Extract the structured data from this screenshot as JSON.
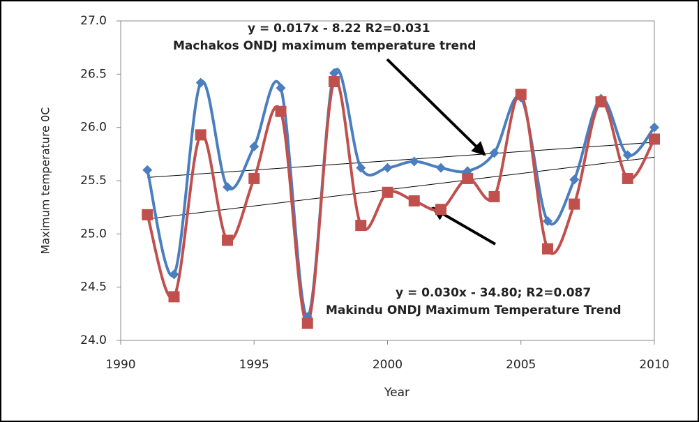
{
  "chart_data": {
    "type": "line",
    "y_label": "Maximum temperature 0C",
    "x_label": "Year",
    "x": [
      1991,
      1992,
      1993,
      1994,
      1995,
      1996,
      1997,
      1998,
      1999,
      2000,
      2001,
      2002,
      2003,
      2004,
      2005,
      2006,
      2007,
      2008,
      2009,
      2010
    ],
    "series": [
      {
        "color": "#4a7ebf",
        "marker": "diamond",
        "values": [
          25.6,
          24.62,
          26.42,
          25.44,
          25.82,
          26.37,
          24.22,
          26.51,
          25.62,
          25.62,
          25.68,
          25.62,
          25.59,
          25.76,
          26.28,
          25.12,
          25.51,
          26.27,
          25.74,
          26.0
        ]
      },
      {
        "color": "#c0504d",
        "marker": "square",
        "values": [
          25.18,
          24.41,
          25.93,
          24.94,
          25.52,
          26.15,
          24.16,
          26.43,
          25.08,
          25.39,
          25.31,
          25.23,
          25.52,
          25.35,
          26.31,
          24.86,
          25.28,
          26.24,
          25.52,
          25.89
        ]
      }
    ],
    "trendlines": [
      {
        "x": [
          1991,
          2010
        ],
        "values": [
          25.53,
          25.86
        ]
      },
      {
        "x": [
          1991,
          2010
        ],
        "values": [
          25.14,
          25.72
        ]
      }
    ],
    "annotations": [
      {
        "lines": [
          "y = 0.017x - 8.22  R2=0.031",
          "Machakos ONDJ  maximum temperature trend"
        ]
      },
      {
        "lines": [
          "y = 0.030x - 34.80; R2=0.087",
          "Makindu ONDJ Maximum Temperature Trend"
        ]
      }
    ],
    "xlim": [
      1990,
      2010
    ],
    "xticks": [
      1990,
      1995,
      2000,
      2005,
      2010
    ],
    "ylim": [
      24.0,
      27.0
    ],
    "yticks": [
      {
        "value": 24.0,
        "label": "24.0"
      },
      24.5,
      {
        "value": 25.0,
        "label": "25.0"
      },
      25.5,
      {
        "value": 26.0,
        "label": "26.0"
      },
      26.5,
      {
        "value": 27.0,
        "label": "27.0"
      }
    ],
    "grid": false
  }
}
